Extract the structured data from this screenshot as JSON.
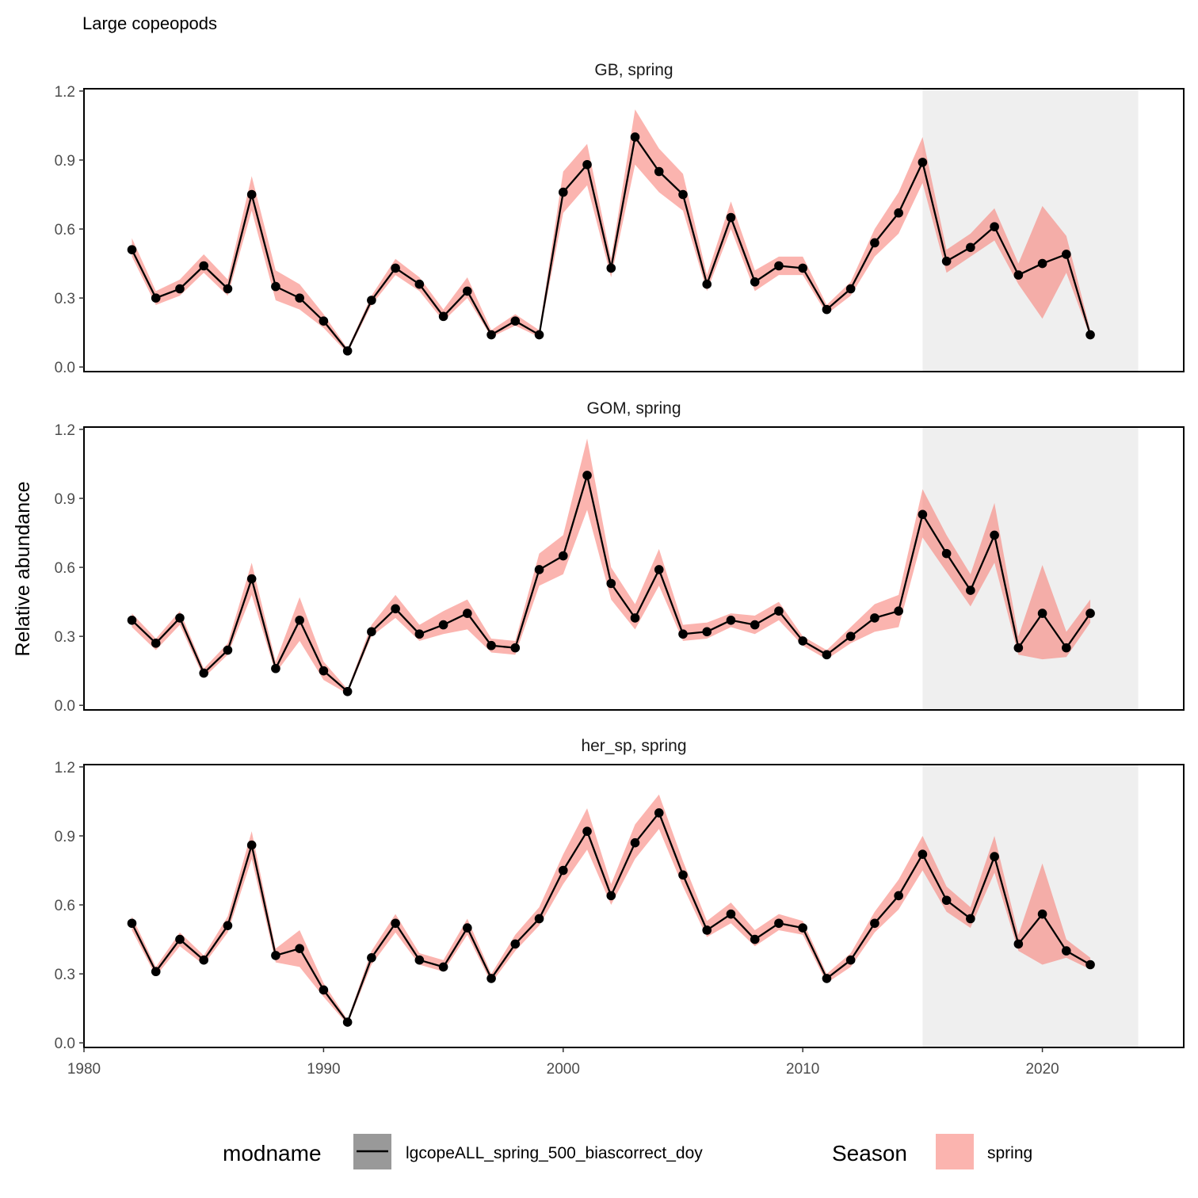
{
  "chart_data": {
    "type": "line",
    "title": "Large copeopods",
    "ylabel": "Relative abundance",
    "xlabel": "",
    "xlim": [
      1980,
      2025.9
    ],
    "ylim": [
      -0.02,
      1.21
    ],
    "x_ticks": [
      1980,
      1990,
      2000,
      2010,
      2020
    ],
    "y_ticks": [
      0.0,
      0.3,
      0.6,
      0.9,
      1.2
    ],
    "y_tick_labels": [
      "0.0",
      "0.3",
      "0.6",
      "0.9",
      "1.2"
    ],
    "highlight_range": [
      2015,
      2024
    ],
    "colors": {
      "ribbon": "#f8766d",
      "ribbon_opacity": 0.55,
      "line": "#000000",
      "highlight": "#efefef",
      "legend_key_bg": "#999999"
    },
    "years": [
      1982,
      1983,
      1984,
      1985,
      1986,
      1987,
      1988,
      1989,
      1990,
      1991,
      1992,
      1993,
      1994,
      1995,
      1996,
      1997,
      1998,
      1999,
      2000,
      2001,
      2002,
      2003,
      2004,
      2005,
      2006,
      2007,
      2008,
      2009,
      2010,
      2011,
      2012,
      2013,
      2014,
      2015,
      2016,
      2017,
      2018,
      2019,
      2020,
      2021,
      2022
    ],
    "panels": [
      {
        "label": "GB, spring",
        "values": [
          0.51,
          0.3,
          0.34,
          0.44,
          0.34,
          0.75,
          0.35,
          0.3,
          0.2,
          0.07,
          0.29,
          0.43,
          0.36,
          0.22,
          0.33,
          0.14,
          0.2,
          0.14,
          0.76,
          0.88,
          0.43,
          1.0,
          0.85,
          0.75,
          0.36,
          0.65,
          0.37,
          0.44,
          0.43,
          0.25,
          0.34,
          0.54,
          0.67,
          0.89,
          0.46,
          0.52,
          0.61,
          0.4,
          0.45,
          0.49,
          0.14
        ],
        "lower": [
          0.48,
          0.27,
          0.31,
          0.41,
          0.31,
          0.68,
          0.29,
          0.25,
          0.17,
          0.06,
          0.27,
          0.4,
          0.33,
          0.2,
          0.3,
          0.13,
          0.18,
          0.13,
          0.67,
          0.79,
          0.39,
          0.88,
          0.76,
          0.68,
          0.33,
          0.6,
          0.33,
          0.4,
          0.4,
          0.23,
          0.31,
          0.48,
          0.58,
          0.8,
          0.41,
          0.48,
          0.55,
          0.36,
          0.21,
          0.41,
          0.13
        ],
        "upper": [
          0.56,
          0.33,
          0.38,
          0.49,
          0.38,
          0.83,
          0.42,
          0.36,
          0.23,
          0.08,
          0.31,
          0.47,
          0.39,
          0.25,
          0.39,
          0.16,
          0.23,
          0.16,
          0.85,
          0.97,
          0.47,
          1.12,
          0.95,
          0.84,
          0.4,
          0.72,
          0.42,
          0.48,
          0.48,
          0.27,
          0.37,
          0.6,
          0.76,
          1.0,
          0.51,
          0.58,
          0.69,
          0.45,
          0.7,
          0.57,
          0.16
        ]
      },
      {
        "label": "GOM, spring",
        "values": [
          0.37,
          0.27,
          0.38,
          0.14,
          0.24,
          0.55,
          0.16,
          0.37,
          0.15,
          0.06,
          0.32,
          0.42,
          0.31,
          0.35,
          0.4,
          0.26,
          0.25,
          0.59,
          0.65,
          1.0,
          0.53,
          0.38,
          0.59,
          0.31,
          0.32,
          0.37,
          0.35,
          0.41,
          0.28,
          0.22,
          0.3,
          0.38,
          0.41,
          0.83,
          0.66,
          0.5,
          0.74,
          0.25,
          0.4,
          0.25,
          0.4
        ],
        "lower": [
          0.34,
          0.24,
          0.35,
          0.12,
          0.22,
          0.48,
          0.14,
          0.28,
          0.11,
          0.05,
          0.3,
          0.38,
          0.28,
          0.31,
          0.33,
          0.23,
          0.22,
          0.52,
          0.57,
          0.85,
          0.46,
          0.33,
          0.52,
          0.28,
          0.29,
          0.34,
          0.31,
          0.37,
          0.26,
          0.2,
          0.27,
          0.32,
          0.34,
          0.73,
          0.58,
          0.43,
          0.62,
          0.22,
          0.2,
          0.21,
          0.36
        ],
        "upper": [
          0.4,
          0.29,
          0.41,
          0.16,
          0.27,
          0.62,
          0.19,
          0.47,
          0.19,
          0.07,
          0.35,
          0.48,
          0.35,
          0.41,
          0.46,
          0.29,
          0.28,
          0.66,
          0.74,
          1.16,
          0.6,
          0.44,
          0.68,
          0.35,
          0.36,
          0.4,
          0.39,
          0.45,
          0.3,
          0.24,
          0.34,
          0.44,
          0.48,
          0.94,
          0.74,
          0.57,
          0.88,
          0.3,
          0.61,
          0.32,
          0.46
        ]
      },
      {
        "label": "her_sp, spring",
        "values": [
          0.52,
          0.31,
          0.45,
          0.36,
          0.51,
          0.86,
          0.38,
          0.41,
          0.23,
          0.09,
          0.37,
          0.52,
          0.36,
          0.33,
          0.5,
          0.28,
          0.43,
          0.54,
          0.75,
          0.92,
          0.64,
          0.87,
          1.0,
          0.73,
          0.49,
          0.56,
          0.45,
          0.52,
          0.5,
          0.28,
          0.36,
          0.52,
          0.64,
          0.82,
          0.62,
          0.54,
          0.81,
          0.43,
          0.56,
          0.4,
          0.34
        ],
        "lower": [
          0.49,
          0.29,
          0.42,
          0.34,
          0.48,
          0.8,
          0.35,
          0.33,
          0.2,
          0.08,
          0.34,
          0.48,
          0.34,
          0.31,
          0.47,
          0.26,
          0.4,
          0.51,
          0.69,
          0.84,
          0.6,
          0.8,
          0.93,
          0.68,
          0.46,
          0.52,
          0.42,
          0.49,
          0.47,
          0.26,
          0.33,
          0.48,
          0.58,
          0.75,
          0.57,
          0.5,
          0.74,
          0.4,
          0.34,
          0.37,
          0.32
        ],
        "upper": [
          0.55,
          0.33,
          0.48,
          0.38,
          0.55,
          0.92,
          0.41,
          0.49,
          0.26,
          0.1,
          0.4,
          0.56,
          0.39,
          0.36,
          0.54,
          0.3,
          0.47,
          0.59,
          0.82,
          1.02,
          0.69,
          0.95,
          1.08,
          0.79,
          0.53,
          0.61,
          0.49,
          0.56,
          0.53,
          0.3,
          0.39,
          0.57,
          0.71,
          0.9,
          0.68,
          0.59,
          0.9,
          0.47,
          0.78,
          0.45,
          0.37
        ]
      }
    ],
    "legend": {
      "placement": "bottom",
      "groups": [
        {
          "title": "modname",
          "key": "line",
          "label": "lgcopeALL_spring_500_biascorrect_doy"
        },
        {
          "title": "Season",
          "key": "fill",
          "label": "spring"
        }
      ]
    }
  }
}
